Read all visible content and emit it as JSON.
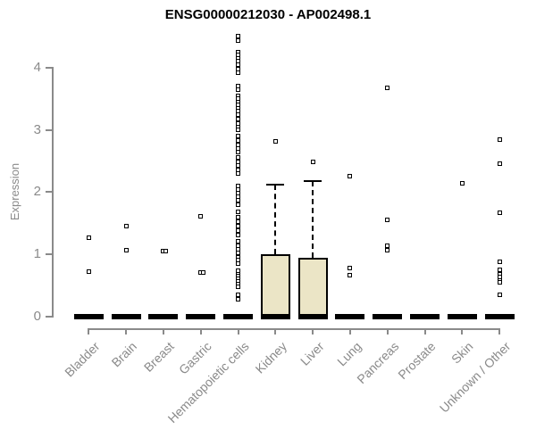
{
  "title": "ENSG00000212030 - AP002498.1",
  "chart_data": {
    "type": "boxplot",
    "title": "ENSG00000212030 - AP002498.1",
    "xlabel": "",
    "ylabel": "Expression",
    "ylim": [
      0,
      4.55
    ],
    "yticks": [
      0,
      1,
      2,
      3,
      4
    ],
    "grid": false,
    "legend": false,
    "colors": {
      "box_fill": "#EBE5C6",
      "box_border": "#000000",
      "axis": "#8a8a8a",
      "tick_label": "#8a8a8a",
      "title": "#000000",
      "point": "#000000"
    },
    "categories": [
      "Bladder",
      "Brain",
      "Breast",
      "Gastric",
      "Hematopoietic cells",
      "Kidney",
      "Liver",
      "Lung",
      "Pancreas",
      "Prostate",
      "Skin",
      "Unknown / Other"
    ],
    "boxes": [
      {
        "category": "Bladder",
        "q1": 0,
        "median": 0,
        "q3": 0,
        "whisker_low": 0,
        "whisker_high": 0,
        "outliers": [
          1.26,
          0.72
        ]
      },
      {
        "category": "Brain",
        "q1": 0,
        "median": 0,
        "q3": 0,
        "whisker_low": 0,
        "whisker_high": 0,
        "outliers": [
          1.45,
          1.06
        ]
      },
      {
        "category": "Breast",
        "q1": 0,
        "median": 0,
        "q3": 0,
        "whisker_low": 0,
        "whisker_high": 0,
        "outliers": [
          1.05,
          1.05
        ]
      },
      {
        "category": "Gastric",
        "q1": 0,
        "median": 0,
        "q3": 0,
        "whisker_low": 0,
        "whisker_high": 0,
        "outliers": [
          1.61,
          0.7,
          0.7
        ]
      },
      {
        "category": "Hematopoietic cells",
        "q1": 0,
        "median": 0,
        "q3": 0,
        "whisker_low": 0,
        "whisker_high": 0,
        "outliers": [
          4.51,
          4.43,
          4.25,
          4.2,
          4.15,
          4.1,
          4.05,
          3.98,
          3.92,
          3.7,
          3.64,
          3.55,
          3.5,
          3.45,
          3.4,
          3.35,
          3.3,
          3.25,
          3.18,
          3.1,
          3.05,
          3.0,
          2.9,
          2.83,
          2.76,
          2.7,
          2.64,
          2.55,
          2.48,
          2.42,
          2.36,
          2.3,
          2.1,
          2.04,
          1.98,
          1.92,
          1.86,
          1.8,
          1.68,
          1.6,
          1.52,
          1.45,
          1.38,
          1.3,
          1.2,
          1.14,
          1.08,
          1.02,
          0.95,
          0.9,
          0.85,
          0.73,
          0.68,
          0.64,
          0.6,
          0.56,
          0.52,
          0.48,
          0.35,
          0.27
        ]
      },
      {
        "category": "Kidney",
        "q1": 0,
        "median": 0,
        "q3": 1.0,
        "whisker_low": 0,
        "whisker_high": 2.12,
        "outliers": [
          2.82
        ]
      },
      {
        "category": "Liver",
        "q1": 0,
        "median": 0,
        "q3": 0.94,
        "whisker_low": 0,
        "whisker_high": 2.18,
        "outliers": [
          2.48
        ]
      },
      {
        "category": "Lung",
        "q1": 0,
        "median": 0,
        "q3": 0,
        "whisker_low": 0,
        "whisker_high": 0,
        "outliers": [
          2.26,
          0.78,
          0.66
        ]
      },
      {
        "category": "Pancreas",
        "q1": 0,
        "median": 0,
        "q3": 0,
        "whisker_low": 0,
        "whisker_high": 0,
        "outliers": [
          3.67,
          1.55,
          1.14,
          1.06
        ]
      },
      {
        "category": "Prostate",
        "q1": 0,
        "median": 0,
        "q3": 0,
        "whisker_low": 0,
        "whisker_high": 0,
        "outliers": []
      },
      {
        "category": "Skin",
        "q1": 0,
        "median": 0,
        "q3": 0,
        "whisker_low": 0,
        "whisker_high": 0,
        "outliers": [
          2.14
        ]
      },
      {
        "category": "Unknown / Other",
        "q1": 0,
        "median": 0,
        "q3": 0,
        "whisker_low": 0,
        "whisker_high": 0,
        "outliers": [
          2.84,
          2.46,
          1.67,
          0.87,
          0.75,
          0.68,
          0.63,
          0.58,
          0.55,
          0.35
        ]
      }
    ]
  }
}
